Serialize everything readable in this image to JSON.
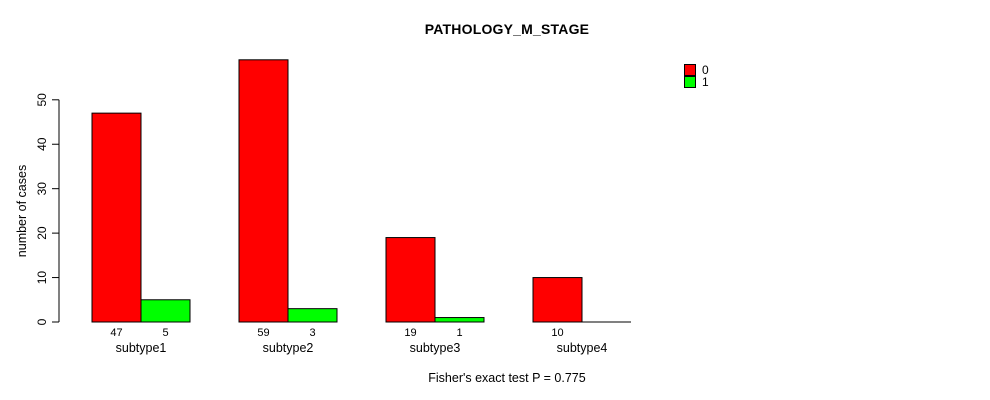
{
  "chart_data": {
    "type": "bar",
    "title": "PATHOLOGY_M_STAGE",
    "xlabel": "",
    "ylabel": "number of cases",
    "categories": [
      "subtype1",
      "subtype2",
      "subtype3",
      "subtype4"
    ],
    "series": [
      {
        "name": "0",
        "color": "#ff0000",
        "values": [
          47,
          59,
          19,
          10
        ]
      },
      {
        "name": "1",
        "color": "#00ff00",
        "values": [
          5,
          3,
          1,
          0
        ]
      }
    ],
    "bar_count_labels": [
      [
        "47",
        "5"
      ],
      [
        "59",
        "3"
      ],
      [
        "19",
        "1"
      ],
      [
        "10",
        ""
      ]
    ],
    "y_ticks": [
      0,
      10,
      20,
      30,
      40,
      50
    ],
    "ylim": [
      0,
      50
    ],
    "grid": false,
    "legend_position": "top-right",
    "annotation": "Fisher's exact test P = 0.775"
  }
}
